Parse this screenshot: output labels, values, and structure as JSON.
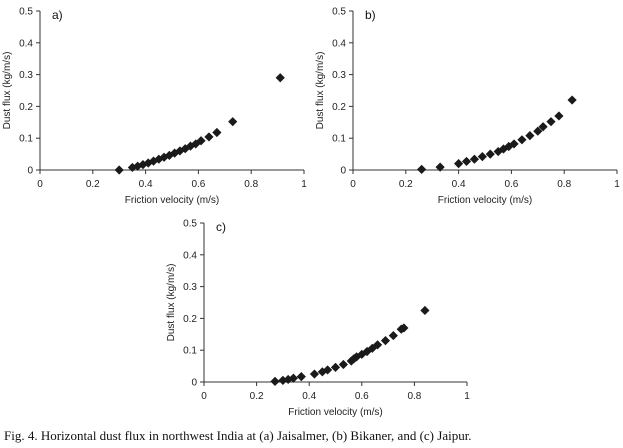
{
  "figure": {
    "caption": "Fig. 4. Horizontal dust flux in northwest India at (a) Jaisalmer, (b) Bikaner, and (c) Jaipur."
  },
  "chart_data": [
    {
      "type": "scatter",
      "panel_label": "a)",
      "site": "Jaisalmer",
      "xlabel": "Friction velocity (m/s)",
      "ylabel": "Dust flux (kg/m/s)",
      "xlim": [
        0,
        1
      ],
      "ylim": [
        0,
        0.5
      ],
      "x_ticks": [
        "0",
        "0.2",
        "0.4",
        "0.6",
        "0.8",
        "1"
      ],
      "y_ticks": [
        "0",
        "0.1",
        "0.2",
        "0.3",
        "0.4",
        "0.5"
      ],
      "marker": "diamond",
      "color": "#1a1a1a",
      "points": [
        [
          0.3,
          0.0
        ],
        [
          0.35,
          0.008
        ],
        [
          0.37,
          0.012
        ],
        [
          0.39,
          0.017
        ],
        [
          0.41,
          0.022
        ],
        [
          0.43,
          0.028
        ],
        [
          0.45,
          0.034
        ],
        [
          0.47,
          0.04
        ],
        [
          0.49,
          0.046
        ],
        [
          0.51,
          0.053
        ],
        [
          0.53,
          0.06
        ],
        [
          0.55,
          0.067
        ],
        [
          0.57,
          0.075
        ],
        [
          0.59,
          0.082
        ],
        [
          0.61,
          0.092
        ],
        [
          0.64,
          0.104
        ],
        [
          0.67,
          0.118
        ],
        [
          0.73,
          0.152
        ],
        [
          0.91,
          0.29
        ]
      ]
    },
    {
      "type": "scatter",
      "panel_label": "b)",
      "site": "Bikaner",
      "xlabel": "Friction velocity (m/s)",
      "ylabel": "Dust flux (kg/m/s)",
      "xlim": [
        0,
        1
      ],
      "ylim": [
        0,
        0.5
      ],
      "x_ticks": [
        "0",
        "0.2",
        "0.4",
        "0.6",
        "0.8",
        "1"
      ],
      "y_ticks": [
        "0",
        "0.1",
        "0.2",
        "0.3",
        "0.4",
        "0.5"
      ],
      "marker": "diamond",
      "color": "#1a1a1a",
      "points": [
        [
          0.26,
          0.002
        ],
        [
          0.33,
          0.009
        ],
        [
          0.4,
          0.02
        ],
        [
          0.43,
          0.027
        ],
        [
          0.46,
          0.034
        ],
        [
          0.49,
          0.042
        ],
        [
          0.52,
          0.05
        ],
        [
          0.55,
          0.058
        ],
        [
          0.57,
          0.066
        ],
        [
          0.59,
          0.074
        ],
        [
          0.61,
          0.082
        ],
        [
          0.64,
          0.095
        ],
        [
          0.67,
          0.108
        ],
        [
          0.7,
          0.122
        ],
        [
          0.72,
          0.136
        ],
        [
          0.75,
          0.152
        ],
        [
          0.78,
          0.17
        ],
        [
          0.83,
          0.22
        ]
      ]
    },
    {
      "type": "scatter",
      "panel_label": "c)",
      "site": "Jaipur",
      "xlabel": "Friction velocity (m/s)",
      "ylabel": "Dust flux (kg/m/s)",
      "xlim": [
        0,
        1
      ],
      "ylim": [
        0,
        0.5
      ],
      "x_ticks": [
        "0",
        "0.2",
        "0.4",
        "0.6",
        "0.8",
        "1"
      ],
      "y_ticks": [
        "0",
        "0.1",
        "0.2",
        "0.3",
        "0.4",
        "0.5"
      ],
      "marker": "diamond",
      "color": "#1a1a1a",
      "points": [
        [
          0.27,
          0.002
        ],
        [
          0.3,
          0.005
        ],
        [
          0.32,
          0.008
        ],
        [
          0.34,
          0.012
        ],
        [
          0.37,
          0.017
        ],
        [
          0.42,
          0.025
        ],
        [
          0.45,
          0.032
        ],
        [
          0.47,
          0.038
        ],
        [
          0.5,
          0.046
        ],
        [
          0.53,
          0.055
        ],
        [
          0.56,
          0.066
        ],
        [
          0.57,
          0.073
        ],
        [
          0.58,
          0.079
        ],
        [
          0.6,
          0.087
        ],
        [
          0.62,
          0.096
        ],
        [
          0.64,
          0.106
        ],
        [
          0.66,
          0.117
        ],
        [
          0.69,
          0.13
        ],
        [
          0.72,
          0.146
        ],
        [
          0.75,
          0.166
        ],
        [
          0.76,
          0.17
        ],
        [
          0.84,
          0.225
        ]
      ]
    }
  ]
}
